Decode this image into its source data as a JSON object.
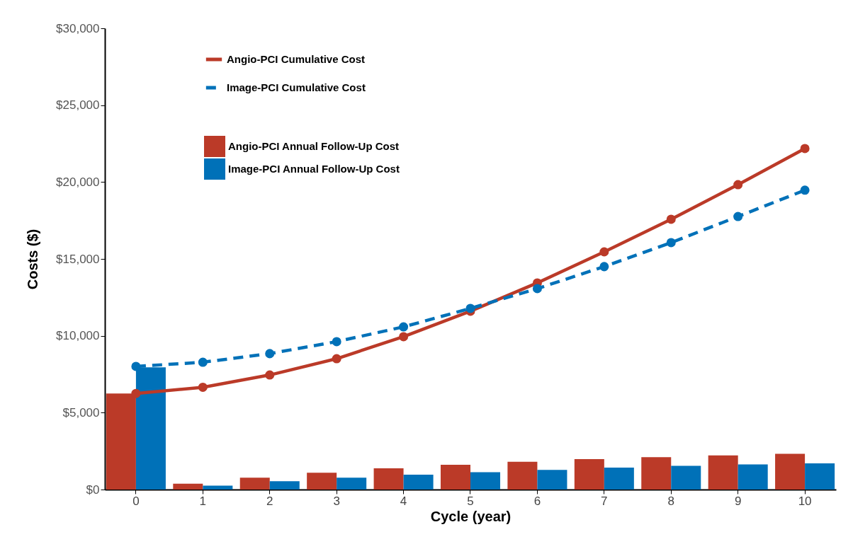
{
  "chart_data": {
    "type": "bar",
    "xlabel": "Cycle (year)",
    "ylabel": "Costs ($)",
    "categories": [
      "0",
      "1",
      "2",
      "3",
      "4",
      "5",
      "6",
      "7",
      "8",
      "9",
      "10"
    ],
    "series": [
      {
        "name": "Angio-PCI Annual Follow-Up Cost",
        "color": "#bb3a28",
        "values": [
          6250,
          380,
          770,
          1090,
          1380,
          1610,
          1810,
          1980,
          2110,
          2220,
          2320
        ]
      },
      {
        "name": "Image-PCI Annual Follow-Up Cost",
        "color": "#0071b8",
        "values": [
          7950,
          250,
          540,
          770,
          970,
          1130,
          1280,
          1430,
          1540,
          1630,
          1700
        ]
      },
      {
        "name": "Angio-PCI Cumulative Cost",
        "type": "line",
        "color": "#bb3a28",
        "line_style": "solid",
        "marker": "circle",
        "values": [
          6250,
          6650,
          7450,
          8510,
          9940,
          11600,
          13440,
          15460,
          17580,
          19830,
          22180
        ]
      },
      {
        "name": "Image-PCI Cumulative Cost",
        "type": "line",
        "color": "#0071b8",
        "line_style": "dashed",
        "marker": "circle",
        "values": [
          8010,
          8280,
          8840,
          9620,
          10580,
          11780,
          13070,
          14500,
          16060,
          17760,
          19470
        ]
      }
    ],
    "ylim": [
      0,
      30000
    ],
    "yticks": [
      {
        "value": 0,
        "label": "$0"
      },
      {
        "value": 5000,
        "label": "$5,000"
      },
      {
        "value": 10000,
        "label": "$10,000"
      },
      {
        "value": 15000,
        "label": "$15,000"
      },
      {
        "value": 20000,
        "label": "$20,000"
      },
      {
        "value": 25000,
        "label": "$25,000"
      },
      {
        "value": 30000,
        "label": "$30,000"
      }
    ],
    "grid": false,
    "legend": "top left"
  }
}
